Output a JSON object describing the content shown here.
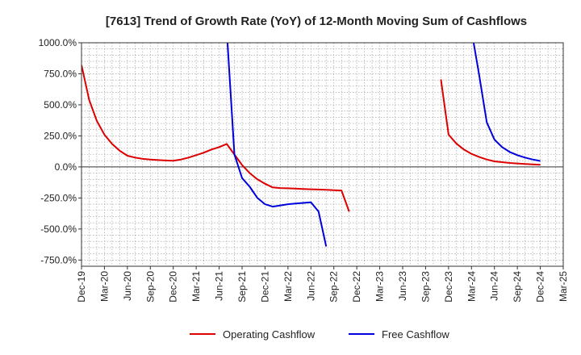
{
  "chart_data": {
    "type": "line",
    "title": "[7613]  Trend of Growth Rate (YoY) of 12-Month Moving Sum of Cashflows",
    "xlabel": "",
    "ylabel": "",
    "ylim": [
      -800,
      1000
    ],
    "y_ticks": [
      1000,
      750,
      500,
      250,
      0,
      -250,
      -500,
      -750
    ],
    "y_tick_labels": [
      "1000.0%",
      "750.0%",
      "500.0%",
      "250.0%",
      "0.0%",
      "-250.0%",
      "-500.0%",
      "-750.0%"
    ],
    "x_tick_labels": [
      "Dec-19",
      "Mar-20",
      "Jun-20",
      "Sep-20",
      "Dec-20",
      "Mar-21",
      "Jun-21",
      "Sep-21",
      "Dec-21",
      "Mar-22",
      "Jun-22",
      "Sep-22",
      "Dec-22",
      "Mar-23",
      "Jun-23",
      "Sep-23",
      "Dec-23",
      "Mar-24",
      "Jun-24",
      "Sep-24",
      "Dec-24",
      "Mar-25"
    ],
    "x_range": [
      "2019-12",
      "2025-03"
    ],
    "grid": true,
    "legend_position": "bottom",
    "colors": {
      "operating": "#dd0000",
      "free": "#0000dd",
      "zero_line": "#333333",
      "grid": "#999999"
    },
    "series": [
      {
        "name": "Operating Cashflow",
        "color": "#dd0000",
        "points": [
          [
            "2019-12",
            820
          ],
          [
            "2020-01",
            540
          ],
          [
            "2020-02",
            370
          ],
          [
            "2020-03",
            260
          ],
          [
            "2020-04",
            185
          ],
          [
            "2020-05",
            130
          ],
          [
            "2020-06",
            90
          ],
          [
            "2020-07",
            75
          ],
          [
            "2020-08",
            65
          ],
          [
            "2020-09",
            60
          ],
          [
            "2020-10",
            55
          ],
          [
            "2020-11",
            52
          ],
          [
            "2020-12",
            50
          ],
          [
            "2021-01",
            60
          ],
          [
            "2021-02",
            75
          ],
          [
            "2021-03",
            95
          ],
          [
            "2021-04",
            115
          ],
          [
            "2021-05",
            140
          ],
          [
            "2021-06",
            160
          ],
          [
            "2021-07",
            185
          ],
          [
            "2021-08",
            100
          ],
          [
            "2021-09",
            15
          ],
          [
            "2021-10",
            -50
          ],
          [
            "2021-11",
            -100
          ],
          [
            "2021-12",
            -135
          ],
          [
            "2022-01",
            -165
          ],
          [
            "2022-02",
            -170
          ],
          [
            "2022-03",
            -172
          ],
          [
            "2022-04",
            -175
          ],
          [
            "2022-05",
            -178
          ],
          [
            "2022-06",
            -180
          ],
          [
            "2022-07",
            -182
          ],
          [
            "2022-08",
            -184
          ],
          [
            "2022-09",
            -187
          ],
          [
            "2022-10",
            -190
          ],
          [
            "2022-11",
            -360
          ],
          null,
          [
            "2023-11",
            705
          ],
          [
            "2023-12",
            260
          ],
          [
            "2024-01",
            190
          ],
          [
            "2024-02",
            140
          ],
          [
            "2024-03",
            105
          ],
          [
            "2024-04",
            80
          ],
          [
            "2024-05",
            60
          ],
          [
            "2024-06",
            45
          ],
          [
            "2024-07",
            38
          ],
          [
            "2024-08",
            32
          ],
          [
            "2024-09",
            28
          ],
          [
            "2024-10",
            24
          ],
          [
            "2024-11",
            20
          ],
          [
            "2024-12",
            17
          ]
        ]
      },
      {
        "name": "Free Cashflow",
        "color": "#0000dd",
        "points": [
          [
            "2021-07",
            1100
          ],
          [
            "2021-08",
            100
          ],
          [
            "2021-09",
            -90
          ],
          [
            "2021-10",
            -160
          ],
          [
            "2021-11",
            -250
          ],
          [
            "2021-12",
            -300
          ],
          [
            "2022-01",
            -320
          ],
          [
            "2022-02",
            -310
          ],
          [
            "2022-03",
            -300
          ],
          [
            "2022-04",
            -295
          ],
          [
            "2022-05",
            -290
          ],
          [
            "2022-06",
            -285
          ],
          [
            "2022-07",
            -360
          ],
          [
            "2022-08",
            -640
          ],
          null,
          [
            "2024-03",
            1100
          ],
          [
            "2024-04",
            740
          ],
          [
            "2024-05",
            360
          ],
          [
            "2024-06",
            220
          ],
          [
            "2024-07",
            160
          ],
          [
            "2024-08",
            120
          ],
          [
            "2024-09",
            95
          ],
          [
            "2024-10",
            75
          ],
          [
            "2024-11",
            60
          ],
          [
            "2024-12",
            48
          ]
        ]
      }
    ]
  }
}
